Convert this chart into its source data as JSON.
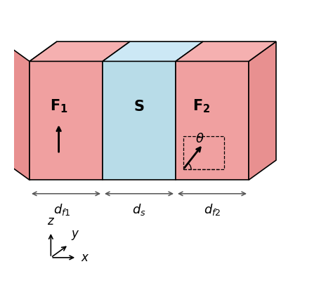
{
  "fig_width": 4.74,
  "fig_height": 4.13,
  "dpi": 100,
  "bg_color": "#ffffff",
  "F_color_face": "#f0a0a0",
  "F_top_color": "#f5b0b0",
  "F_side_color": "#e89090",
  "S_color_face": "#b8dce8",
  "S_top_color": "#cce8f5",
  "S_side_color": "#a0c8dc",
  "block_edge_color": "#000000",
  "arrow_color": "#000000"
}
